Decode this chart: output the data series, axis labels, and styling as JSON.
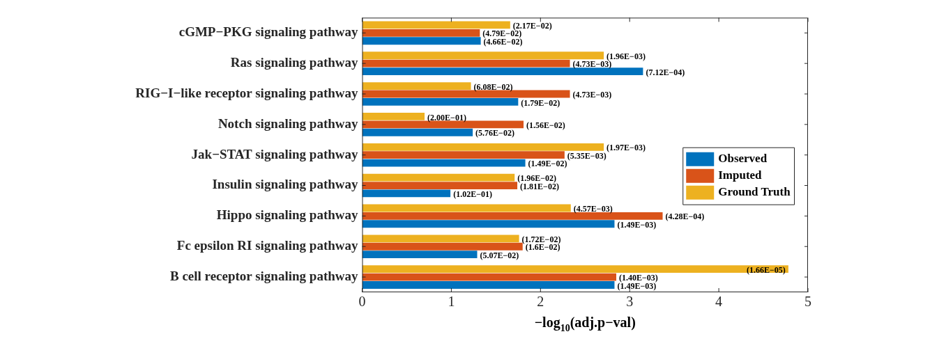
{
  "chart_data": {
    "type": "bar",
    "orientation": "horizontal",
    "xlabel": "−log$_{10}$(adj.p−val)",
    "categories": [
      "cGMP−PKG signaling pathway",
      "Ras signaling pathway",
      "RIG−I−like receptor signaling pathway",
      "Notch signaling pathway",
      "Jak−STAT signaling pathway",
      "Insulin signaling pathway",
      "Hippo signaling pathway",
      "Fc epsilon RI signaling pathway",
      "B cell receptor signaling pathway"
    ],
    "series": [
      {
        "name": "Observed",
        "color": "#0072bd",
        "values": [
          1.33,
          3.15,
          1.75,
          1.24,
          1.83,
          0.99,
          2.83,
          1.29,
          2.83
        ],
        "value_labels": [
          "(4.66E−02)",
          "(7.12E−04)",
          "(1.79E−02)",
          "(5.76E−02)",
          "(1.49E−02)",
          "(1.02E−01)",
          "(1.49E−03)",
          "(5.07E−02)",
          "(1.49E−03)"
        ]
      },
      {
        "name": "Imputed",
        "color": "#d95319",
        "values": [
          1.32,
          2.33,
          2.33,
          1.81,
          2.27,
          1.74,
          3.37,
          1.8,
          2.85
        ],
        "value_labels": [
          "(4.79E−02)",
          "(4.73E−03)",
          "(4.73E−03)",
          "(1.56E−02)",
          "(5.35E−03)",
          "(1.81E−02)",
          "(4.28E−04)",
          "(1.6E−02)",
          "(1.40E−03)"
        ]
      },
      {
        "name": "Ground Truth",
        "color": "#edb120",
        "values": [
          1.66,
          2.71,
          1.22,
          0.7,
          2.71,
          1.71,
          2.34,
          1.76,
          4.78
        ],
        "value_labels": [
          "(2.17E−02)",
          "(1.96E−03)",
          "(6.08E−02)",
          "(2.00E−01)",
          "(1.97E−03)",
          "(1.96E−02)",
          "(4.57E−03)",
          "(1.72E−02)",
          "(1.66E−05)"
        ]
      }
    ],
    "xlim": [
      0,
      5
    ],
    "xticks": [
      0,
      1,
      2,
      3,
      4,
      5
    ],
    "grid": false,
    "legend": "right"
  }
}
